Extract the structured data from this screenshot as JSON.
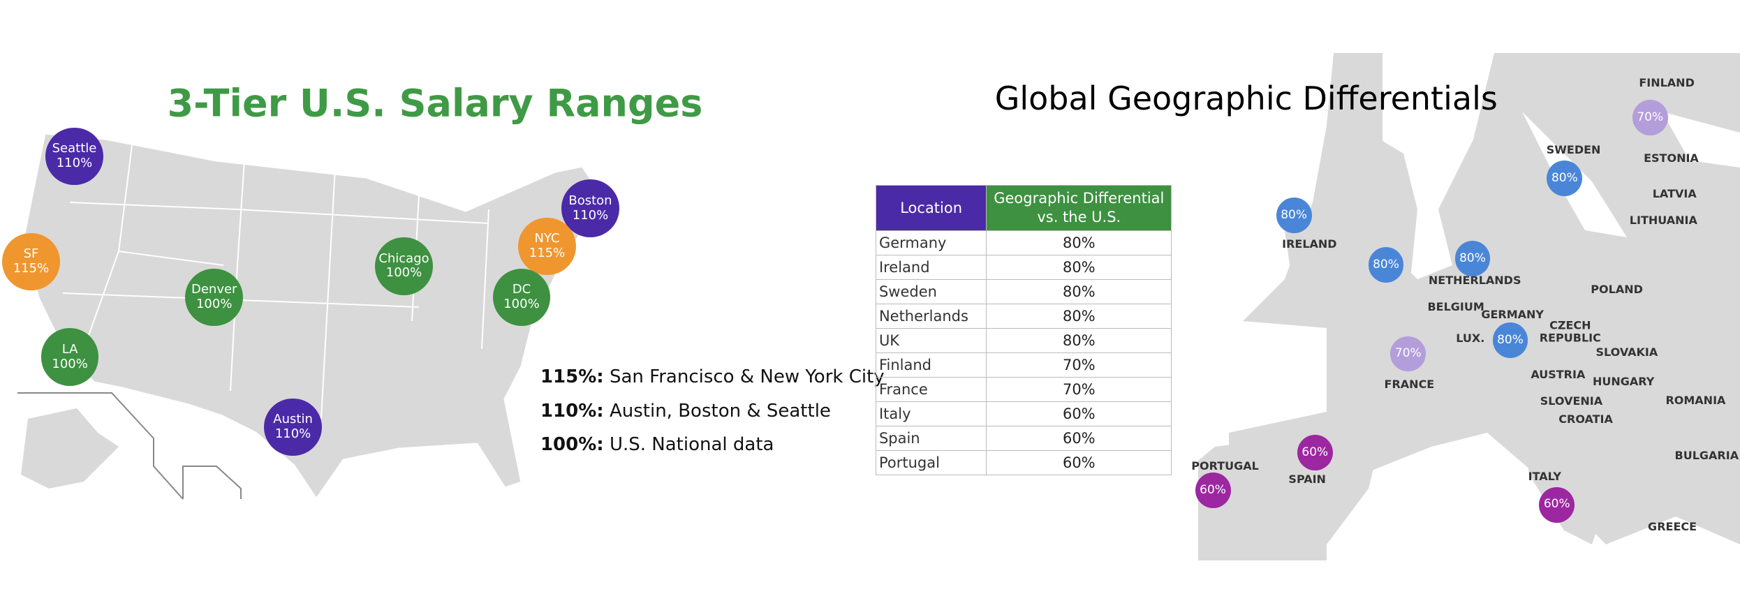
{
  "us": {
    "title": "3-Tier U.S. Salary Ranges",
    "cities": [
      {
        "name": "Seattle",
        "pct": "110%"
      },
      {
        "name": "Boston",
        "pct": "110%"
      },
      {
        "name": "SF",
        "pct": "115%"
      },
      {
        "name": "NYC",
        "pct": "115%"
      },
      {
        "name": "Chicago",
        "pct": "100%"
      },
      {
        "name": "Denver",
        "pct": "100%"
      },
      {
        "name": "DC",
        "pct": "100%"
      },
      {
        "name": "LA",
        "pct": "100%"
      },
      {
        "name": "Austin",
        "pct": "110%"
      }
    ],
    "legend": [
      {
        "tier": "115%:",
        "text": "San Francisco & New York City"
      },
      {
        "tier": "110%:",
        "text": "Austin, Boston & Seattle"
      },
      {
        "tier": "100%:",
        "text": "U.S. National data"
      }
    ]
  },
  "table": {
    "headers": [
      "Location",
      "Geographic Differential vs. the U.S."
    ],
    "rows": [
      [
        "Germany",
        "80%"
      ],
      [
        "Ireland",
        "80%"
      ],
      [
        "Sweden",
        "80%"
      ],
      [
        "Netherlands",
        "80%"
      ],
      [
        "UK",
        "80%"
      ],
      [
        "Finland",
        "70%"
      ],
      [
        "France",
        "70%"
      ],
      [
        "Italy",
        "60%"
      ],
      [
        "Spain",
        "60%"
      ],
      [
        "Portugal",
        "60%"
      ]
    ]
  },
  "europe": {
    "title": "Global Geographic Differentials",
    "countries": [
      "FINLAND",
      "SWEDEN",
      "ESTONIA",
      "LATVIA",
      "LITHUANIA",
      "IRELAND",
      "NETHERLANDS",
      "POLAND",
      "BELGIUM",
      "GERMANY",
      "CZECH REPUBLIC",
      "LUX.",
      "FRANCE",
      "SLOVAKIA",
      "AUSTRIA",
      "HUNGARY",
      "SLOVENIA",
      "ROMANIA",
      "CROATIA",
      "PORTUGAL",
      "SPAIN",
      "BULGARIA",
      "ITALY",
      "GREECE"
    ],
    "bubbles": [
      "70%",
      "80%",
      "80%",
      "80%",
      "80%",
      "80%",
      "70%",
      "60%",
      "60%",
      "60%"
    ]
  }
}
